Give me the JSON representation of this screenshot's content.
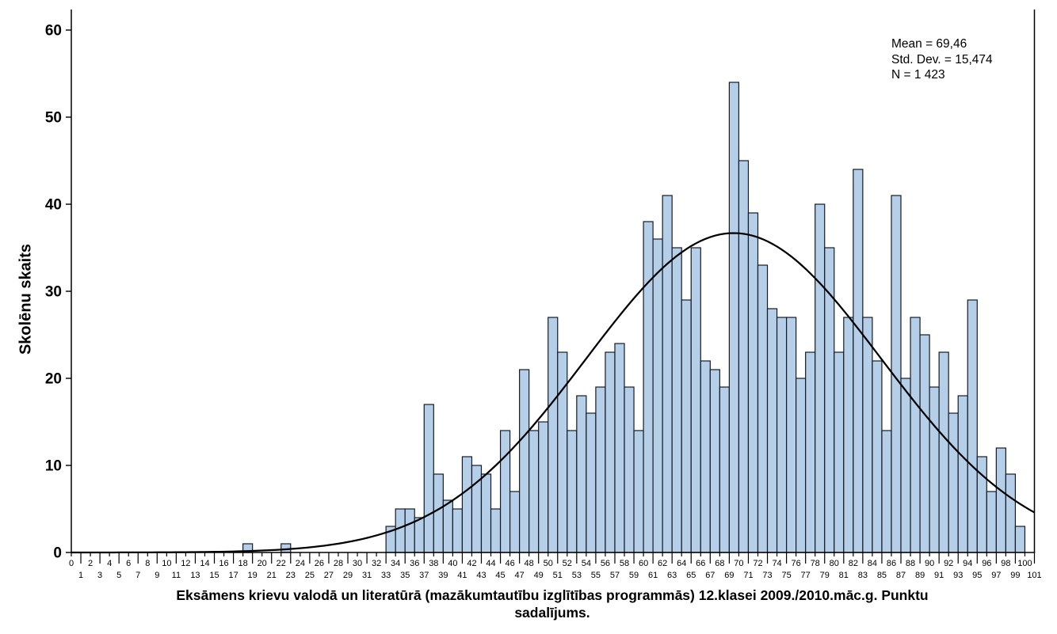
{
  "chart": {
    "y_axis_title": "Skolēnu skaits",
    "stats": {
      "mean": "Mean = 69,46",
      "std_dev": "Std. Dev. = 15,474",
      "n": "N = 1 423"
    },
    "title_lines": [
      "Eksāmens krievu valodā un literatūrā (mazākumtautību izglītības programmās) 12.klasei 2009./2010.māc.g. Punktu",
      "sadalījums."
    ]
  },
  "chart_data": {
    "type": "bar",
    "subtype": "histogram",
    "title": "Eksāmens krievu valodā un literatūrā (mazākumtautību izglītības programmās) 12.klasei 2009./2010.māc.g. Punktu sadalījums.",
    "xlabel": "Eksāmens krievu valodā un literatūrā (mazākumtautību izglītības programmās) 12.klasei 2009./2010.māc.g. Punktu sadalījums.",
    "ylabel": "Skolēnu skaits",
    "bin_width": 1,
    "xlim": [
      0,
      101
    ],
    "ylim": [
      0,
      62
    ],
    "x_tick_step": 1,
    "y_ticks": [
      0,
      10,
      20,
      30,
      40,
      50,
      60
    ],
    "grid": false,
    "legend_position": "none",
    "annotations": [
      "Mean = 69,46",
      "Std. Dev. = 15,474",
      "N = 1 423"
    ],
    "normal_curve": {
      "mean": 69.46,
      "std_dev": 15.474,
      "n": 1423
    },
    "bin_starts_note": "counts[i] = number of students with score in bin [i, i+1)",
    "counts": [
      0,
      0,
      0,
      0,
      0,
      0,
      0,
      0,
      0,
      0,
      0,
      0,
      0,
      0,
      0,
      0,
      0,
      0,
      1,
      0,
      0,
      0,
      1,
      0,
      0,
      0,
      0,
      0,
      0,
      0,
      0,
      0,
      0,
      3,
      5,
      5,
      4,
      17,
      9,
      6,
      5,
      11,
      10,
      9,
      5,
      14,
      7,
      21,
      14,
      15,
      27,
      23,
      14,
      18,
      16,
      19,
      23,
      24,
      19,
      14,
      38,
      36,
      41,
      35,
      29,
      35,
      22,
      21,
      19,
      54,
      45,
      39,
      33,
      28,
      27,
      27,
      20,
      23,
      40,
      35,
      23,
      27,
      44,
      27,
      22,
      14,
      41,
      20,
      27,
      25,
      19,
      23,
      16,
      18,
      29,
      11,
      7,
      12,
      9,
      3,
      0
    ]
  },
  "colors": {
    "background": "#ffffff",
    "bar_fill": "#b5cfe9",
    "bar_stroke": "#161a24",
    "curve": "#000000",
    "axis": "#000000",
    "text": "#000000"
  }
}
